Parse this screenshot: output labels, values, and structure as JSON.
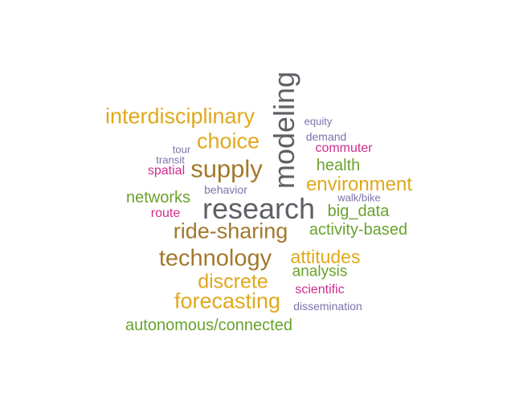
{
  "colors": {
    "gray": "#5f6066",
    "olive": "#a3782b",
    "gold": "#e0a81b",
    "green": "#6aa22e",
    "magenta": "#d12c8f",
    "purple": "#7b73ab"
  },
  "words": {
    "research": "research",
    "modeling": "modeling",
    "supply": "supply",
    "technology": "technology",
    "ride_sharing": "ride-sharing",
    "interdisciplinary": "interdisciplinary",
    "choice": "choice",
    "forecasting": "forecasting",
    "discrete": "discrete",
    "environment": "environment",
    "attitudes": "attitudes",
    "autonomous_connected": "autonomous/connected",
    "activity_based": "activity-based",
    "big_data": "big_data",
    "networks": "networks",
    "health": "health",
    "analysis": "analysis",
    "spatial": "spatial",
    "commuter": "commuter",
    "route": "route",
    "scientific": "scientific",
    "behavior": "behavior",
    "demand": "demand",
    "dissemination": "dissemination",
    "equity": "equity",
    "tour": "tour",
    "transit": "transit",
    "walk_bike": "walk/bike"
  }
}
